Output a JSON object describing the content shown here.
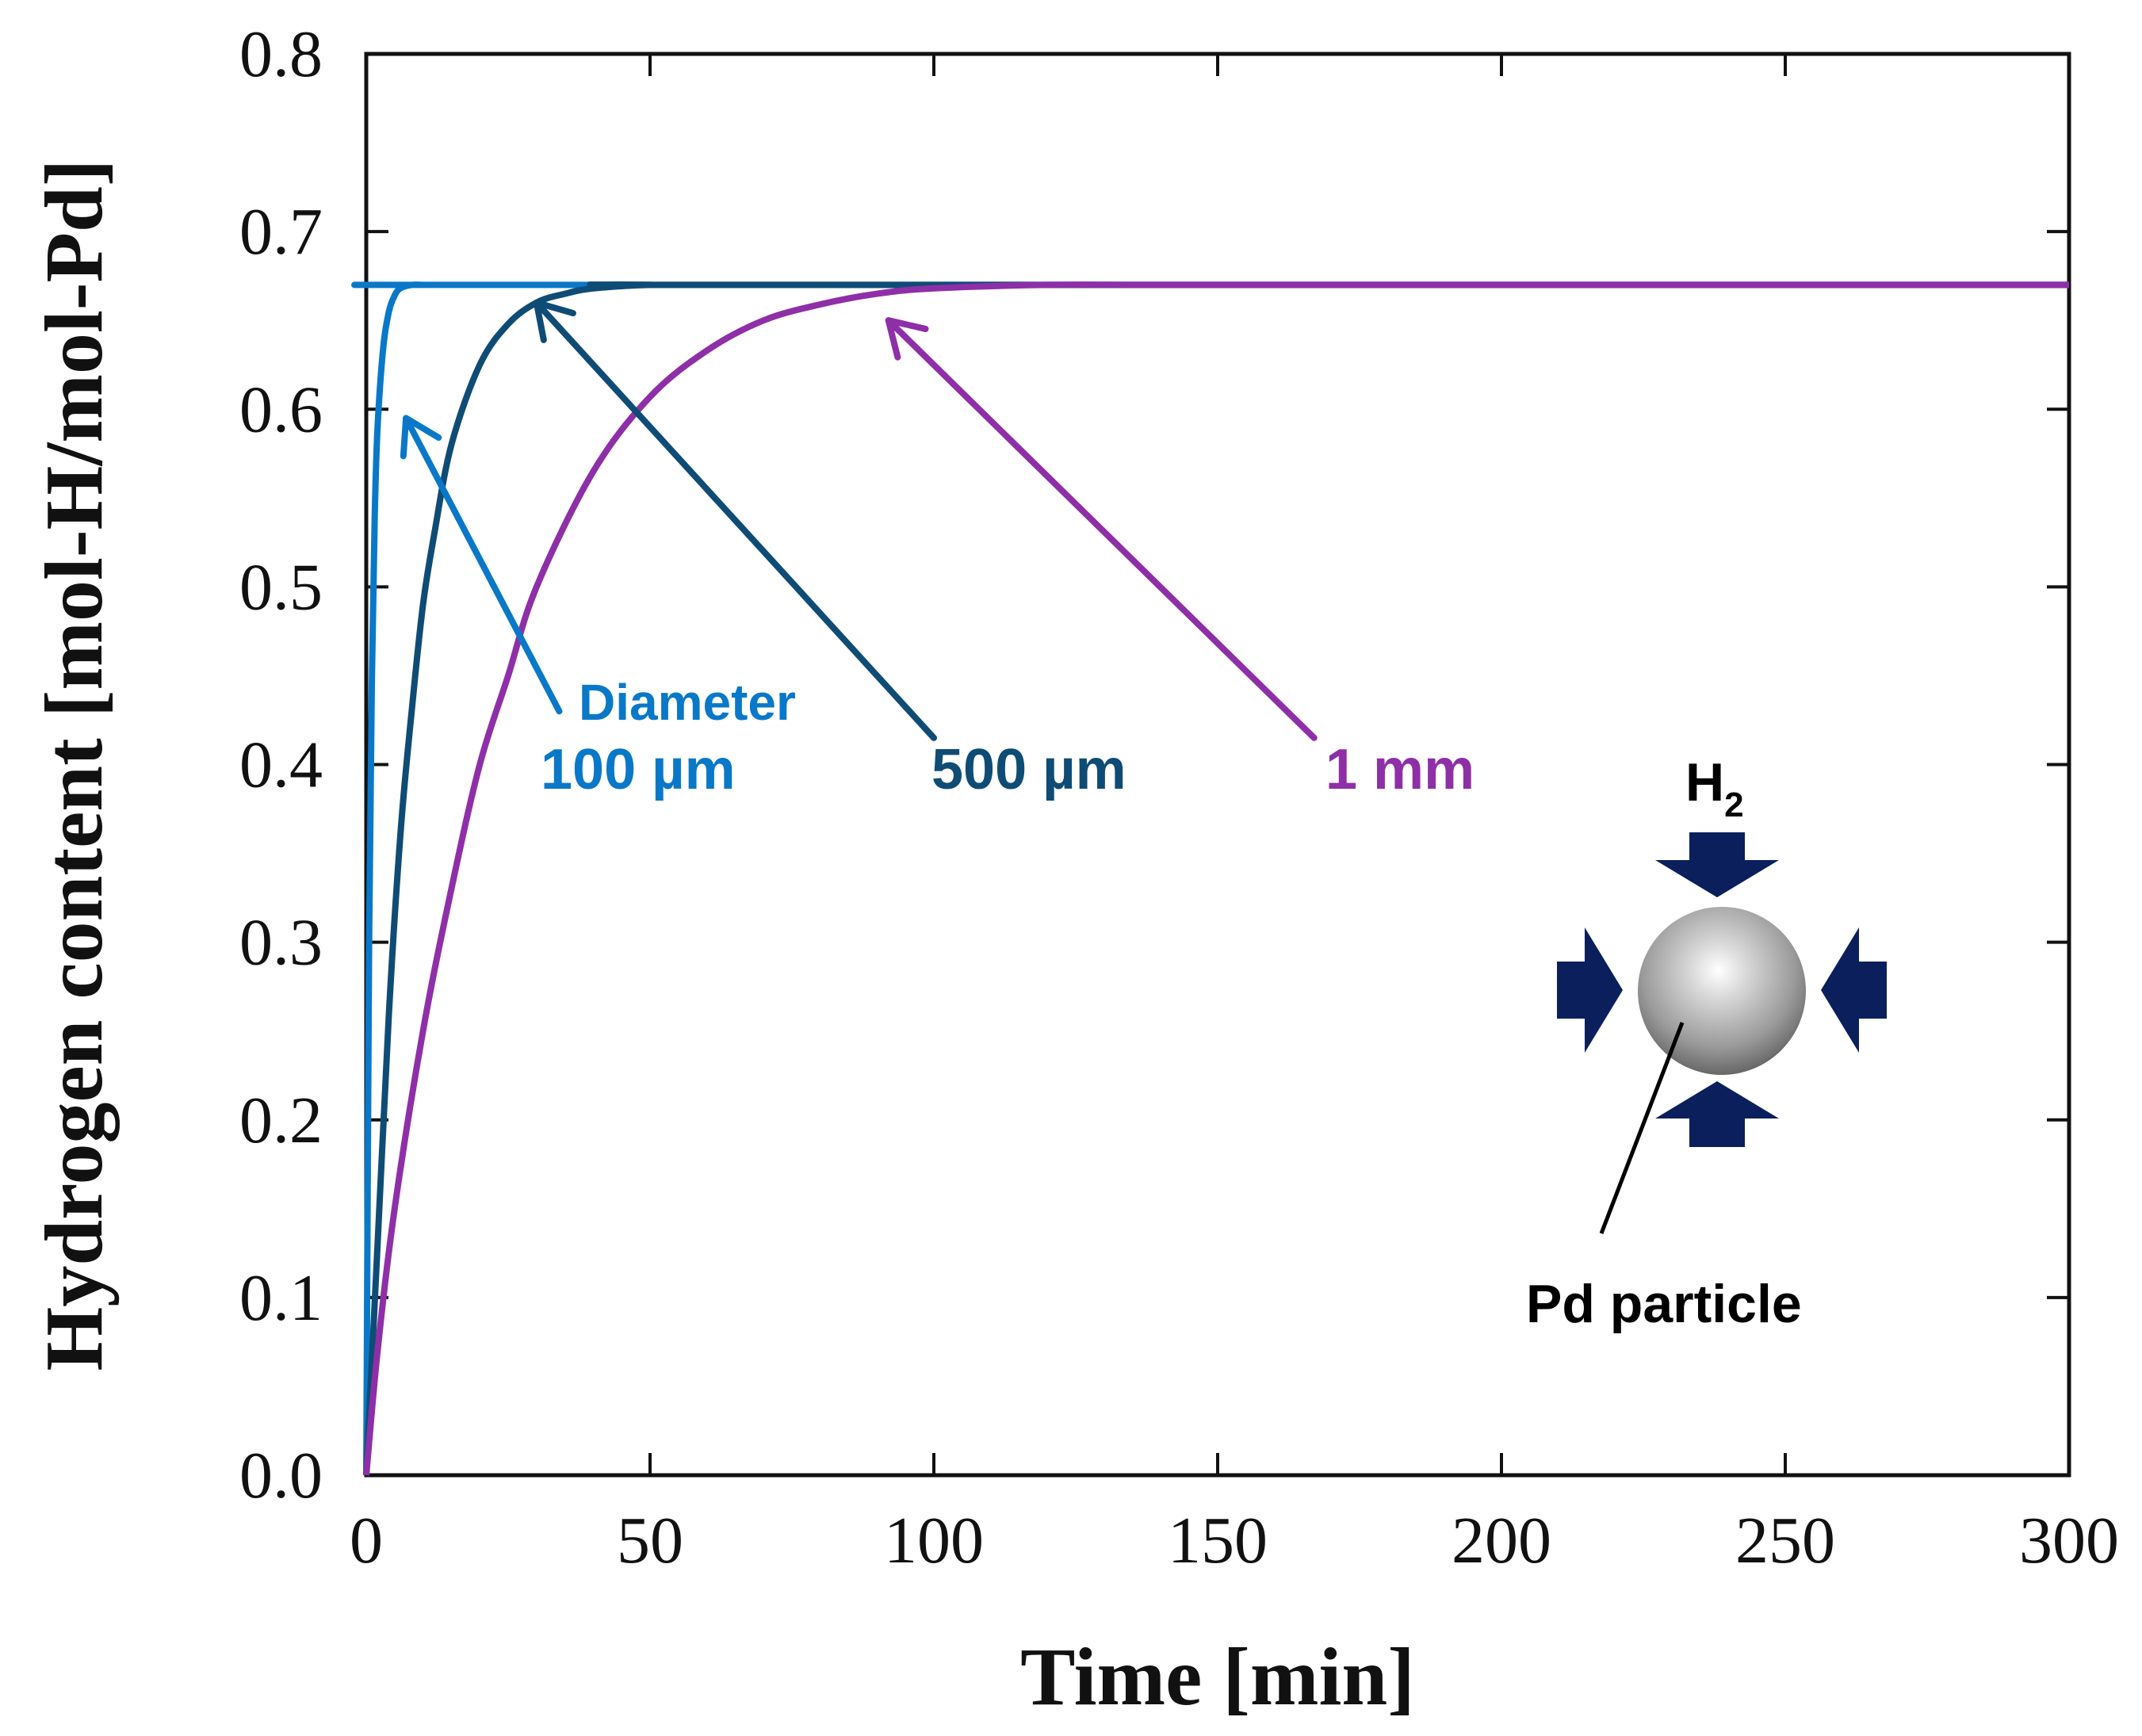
{
  "chart_data": {
    "type": "line",
    "title": "",
    "xlabel": "Time [min]",
    "ylabel": "Hydrogen content [mol-H/mol-Pd]",
    "xlim": [
      0,
      300
    ],
    "ylim": [
      0.0,
      0.8
    ],
    "xticks": [
      0,
      50,
      100,
      150,
      200,
      250,
      300
    ],
    "xtick_labels": [
      "0",
      "50",
      "100",
      "150",
      "200",
      "250",
      "300"
    ],
    "yticks": [
      0.0,
      0.1,
      0.2,
      0.3,
      0.4,
      0.5,
      0.6,
      0.7,
      0.8
    ],
    "ytick_labels": [
      "0.0",
      "0.1",
      "0.2",
      "0.3",
      "0.4",
      "0.5",
      "0.6",
      "0.7",
      "0.8"
    ],
    "grid": false,
    "series": [
      {
        "name": "100 µm",
        "color": "#0a78c8",
        "x": [
          0,
          0.5,
          1,
          1.5,
          2,
          3,
          4,
          5,
          6,
          8,
          10,
          15,
          20,
          300
        ],
        "y": [
          0.0,
          0.3,
          0.45,
          0.54,
          0.59,
          0.635,
          0.655,
          0.664,
          0.668,
          0.67,
          0.67,
          0.67,
          0.67,
          0.67
        ]
      },
      {
        "name": "500 µm",
        "color": "#0f4c75",
        "x": [
          0,
          2,
          4,
          6,
          8,
          10,
          12,
          15,
          20,
          25,
          30,
          35,
          40,
          50,
          60,
          300
        ],
        "y": [
          0.0,
          0.13,
          0.26,
          0.36,
          0.43,
          0.49,
          0.53,
          0.58,
          0.625,
          0.648,
          0.66,
          0.665,
          0.668,
          0.67,
          0.67,
          0.67
        ]
      },
      {
        "name": "1 mm",
        "color": "#8e2fa8",
        "x": [
          0,
          2,
          5,
          10,
          15,
          20,
          25,
          30,
          40,
          50,
          60,
          70,
          80,
          90,
          100,
          120,
          150,
          300
        ],
        "y": [
          0.0,
          0.07,
          0.15,
          0.25,
          0.33,
          0.4,
          0.45,
          0.5,
          0.565,
          0.607,
          0.633,
          0.65,
          0.659,
          0.665,
          0.668,
          0.67,
          0.67,
          0.67
        ]
      }
    ],
    "annotations": [
      {
        "text_line1": "Diameter",
        "text_line2": "100 µm",
        "color": "#0a78c8",
        "arrow_to": [
          7,
          0.595
        ],
        "arrow_from": [
          34,
          0.43
        ]
      },
      {
        "text": "500 µm",
        "color": "#0f4c75",
        "arrow_to": [
          30,
          0.66
        ],
        "arrow_from": [
          100,
          0.415
        ]
      },
      {
        "text": "1 mm",
        "color": "#8e2fa8",
        "arrow_to": [
          92,
          0.65
        ],
        "arrow_from": [
          167,
          0.415
        ]
      }
    ],
    "inset": {
      "gas_label": "H",
      "gas_subscript": "2",
      "particle_label": "Pd particle",
      "arrow_color": "#0a1f5c"
    }
  }
}
